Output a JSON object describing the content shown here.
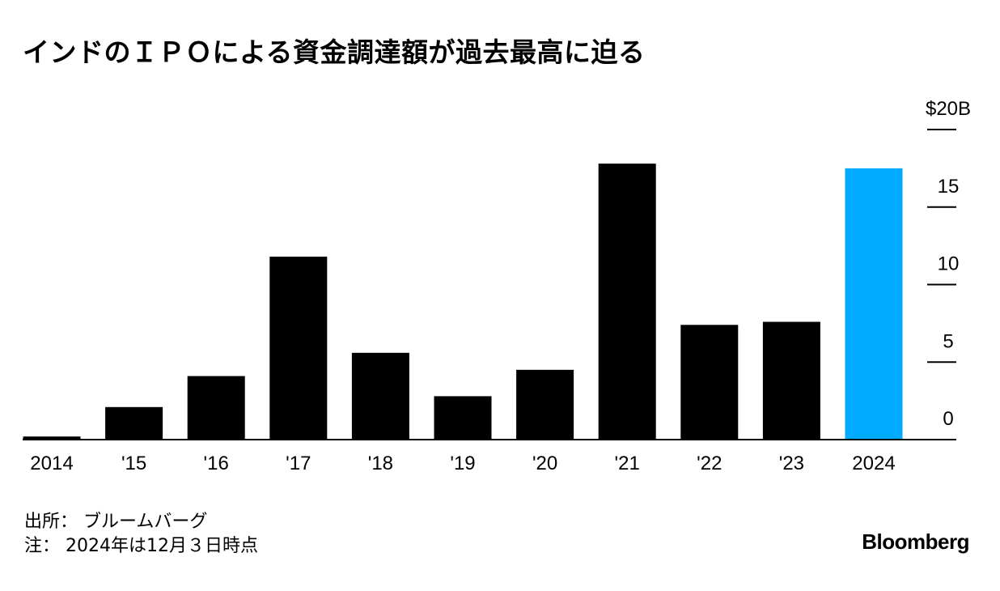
{
  "title": "インドのＩＰＯによる資金調達額が過去最高に迫る",
  "footer": {
    "source": "出所： ブルームバーグ",
    "note": "注： 2024年は12月３日時点"
  },
  "logo": "Bloomberg",
  "colors": {
    "bar": "#000000",
    "highlight": "#00aaff"
  },
  "chart_data": {
    "type": "bar",
    "categories": [
      "2014",
      "'15",
      "'16",
      "'17",
      "'18",
      "'19",
      "'20",
      "'21",
      "'22",
      "'23",
      "2024"
    ],
    "values": [
      0.2,
      2.1,
      4.1,
      11.8,
      5.6,
      2.8,
      4.5,
      17.8,
      7.4,
      7.6,
      17.5
    ],
    "highlight_index": 10,
    "ylim": [
      0,
      20
    ],
    "yticks": [
      0,
      5,
      10,
      15,
      20
    ],
    "ytick_labels": [
      "0",
      "5",
      "10",
      "15",
      "$20B"
    ],
    "yaxis_position": "right",
    "grid": false
  }
}
